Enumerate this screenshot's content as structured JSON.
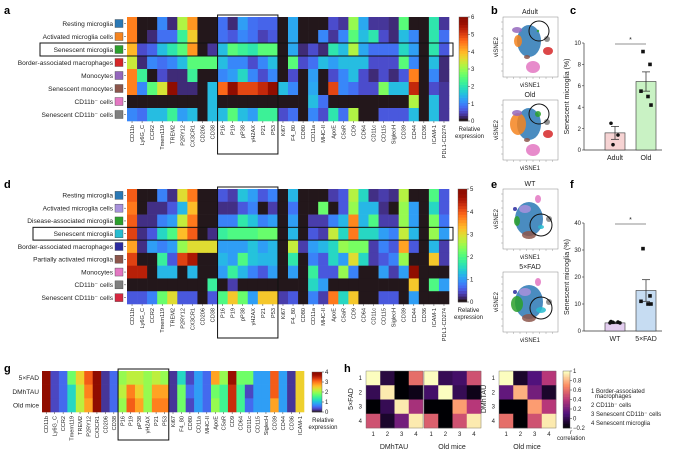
{
  "chart_data": [
    {
      "panel": "a",
      "type": "heatmap",
      "rows": [
        "Resting microglia",
        "Activated microglia cells",
        "Senescent microglia",
        "Border-associated macrophages",
        "Monocytes",
        "Senescent monocytes",
        "CD11b⁻ cells",
        "Senescent CD11b⁻ cells"
      ],
      "row_colors": [
        "#2a78b5",
        "#f5841f",
        "#2ca02c",
        "#d62728",
        "#9467bd",
        "#8c564b",
        "#e377c2",
        "#7f7f7f"
      ],
      "columns": [
        "CD11b",
        "Ly6G_C",
        "CCR2",
        "Tmem119",
        "TREM2",
        "P2RY12",
        "CX3CR1",
        "CD206",
        "CD38",
        "P16",
        "P19",
        "pP38",
        "γH2AX",
        "P21",
        "P53",
        "Ki67",
        "F4_80",
        "CD80",
        "CD11a",
        "MHC-II",
        "ApoE",
        "C5aR",
        "CD9",
        "CD64",
        "CD11c",
        "CD115",
        "SiglecH",
        "CD39",
        "CD44",
        "CD36",
        "ICAM-1",
        "PDL1-CD274"
      ],
      "values": [
        [
          4.5,
          0,
          0,
          1,
          0.2,
          3.2,
          4.3,
          0,
          0,
          0.8,
          0.2,
          1.2,
          0.8,
          0.7,
          0.7,
          0,
          1.3,
          0,
          0,
          0,
          0.5,
          0.3,
          3,
          1.3,
          0.3,
          0.3,
          0.2,
          2.5,
          0,
          0,
          2,
          0.3
        ],
        [
          4.5,
          0,
          0.2,
          0.8,
          0.8,
          2.2,
          3.8,
          0,
          0,
          0.8,
          0.6,
          1,
          0.8,
          0.4,
          0.6,
          0,
          1.3,
          0,
          0,
          1,
          0.3,
          1,
          2.5,
          1.5,
          2,
          0.5,
          0.2,
          1.5,
          1,
          0,
          2,
          0.8
        ],
        [
          4,
          0.5,
          0.7,
          1.5,
          2,
          2.5,
          4.3,
          0,
          0.3,
          1.5,
          2.5,
          2.2,
          2,
          2.5,
          2.5,
          0,
          1.3,
          0.2,
          0.5,
          0.2,
          2,
          1.5,
          3.2,
          1.3,
          0.8,
          0.8,
          0.8,
          1.8,
          1.2,
          0,
          2,
          0.6
        ],
        [
          3.4,
          0.2,
          1,
          0.8,
          1,
          1.5,
          2.5,
          2.5,
          2.5,
          1.5,
          1,
          1,
          0.5,
          1,
          1.5,
          0,
          2.5,
          0.5,
          0.8,
          1.5,
          1.2,
          1.5,
          1.5,
          1.5,
          0.5,
          0.5,
          0.5,
          2.5,
          1,
          0,
          1.5,
          0.2
        ],
        [
          4.5,
          2.2,
          0,
          0.5,
          0.2,
          0.2,
          2.2,
          0,
          0,
          1,
          1.2,
          1.8,
          1,
          0.5,
          1,
          0,
          0.5,
          0,
          1.2,
          0,
          0.5,
          1,
          1.5,
          0.5,
          0.2,
          0.5,
          0.2,
          0.6,
          4.5,
          0,
          1,
          0.2
        ],
        [
          4.5,
          1,
          2.5,
          3.5,
          6,
          0.2,
          0.2,
          0,
          1.5,
          4.7,
          6,
          5,
          5,
          5.3,
          6,
          1.5,
          1,
          0,
          1.3,
          0,
          5,
          1,
          0.8,
          0.5,
          0.5,
          2.8,
          1.5,
          1.5,
          5.3,
          0,
          0.5,
          0.3
        ],
        [
          0,
          0,
          0,
          0,
          0,
          0,
          0,
          0,
          1.5,
          0,
          0,
          0,
          0,
          0,
          0,
          0,
          0,
          0,
          1.5,
          0.8,
          0,
          0,
          0,
          0,
          0,
          0,
          0,
          0,
          3.2,
          0,
          1.5,
          0.3
        ],
        [
          1,
          0.8,
          1.5,
          1.5,
          2.2,
          1.2,
          1.5,
          0,
          1.5,
          1.5,
          2.5,
          1.5,
          1.2,
          2.2,
          2.2,
          0.5,
          0.8,
          0,
          1,
          0.5,
          2,
          0.8,
          3.2,
          0,
          0,
          0.6,
          0.6,
          0.6,
          1.5,
          0,
          1.5,
          0.3
        ]
      ],
      "highlight_row": "Senescent microglia",
      "highlight_columns": [
        "P16",
        "P19",
        "pP38",
        "γH2AX",
        "P21",
        "P53"
      ],
      "colorbar": {
        "label": "Relative expression",
        "range": [
          0,
          6
        ],
        "ticks": [
          "0",
          "1",
          "2",
          "3",
          "4",
          "5",
          "6"
        ]
      }
    },
    {
      "panel": "b",
      "type": "scatter",
      "plots": [
        {
          "title": "Adult"
        },
        {
          "title": "Old"
        }
      ],
      "xlabel": "viSNE1",
      "ylabel": "viSNE2"
    },
    {
      "panel": "c",
      "type": "bar",
      "categories": [
        "Adult",
        "Old"
      ],
      "values": [
        1.6,
        6.4
      ],
      "errors": [
        0.6,
        0.9
      ],
      "points": [
        [
          2.5,
          1.4,
          0.5
        ],
        [
          9.2,
          8.0,
          5.5,
          5.0,
          4.2
        ]
      ],
      "bar_colors": [
        "#f6d3d3",
        "#c9f2c4"
      ],
      "ylabel": "Senescent microglia (%)",
      "ylim": [
        0,
        10
      ],
      "yticks": [
        "0",
        "2",
        "4",
        "6",
        "8",
        "10"
      ],
      "significance": "*"
    },
    {
      "panel": "d",
      "type": "heatmap",
      "rows": [
        "Resting microglia",
        "Activated microglia cells",
        "Disease-associated microglia",
        "Senescent microglia",
        "Border-associated macrophages",
        "Partially activated microglia",
        "Monocytes",
        "CD11b⁻ cells",
        "Senescent CD11b⁻ cells"
      ],
      "row_colors": [
        "#2a78b5",
        "#a891dc",
        "#2ca02c",
        "#26bcd0",
        "#2b2ba0",
        "#8c564b",
        "#e377c2",
        "#7f7f7f",
        "#d62740"
      ],
      "columns": [
        "CD11b",
        "Ly6G_C",
        "CCR2",
        "Tmem119",
        "TREM2",
        "P2RY12",
        "CX3CR1",
        "CD206",
        "CD38",
        "P16",
        "P19",
        "pP38",
        "γH2AX",
        "P21",
        "P53",
        "Ki67",
        "F4_80",
        "CD80",
        "CD11a",
        "MHC-II",
        "ApoE",
        "C5aR",
        "CD9",
        "CD64",
        "CD11c",
        "CD115",
        "SiglecH",
        "CD39",
        "CD44",
        "CD36",
        "ICAM-1",
        "PDL1-CD274"
      ],
      "values": [
        [
          4,
          0,
          0,
          0.8,
          0.2,
          3,
          3.8,
          0,
          0,
          0.5,
          0.3,
          1.3,
          1,
          0.5,
          0.8,
          0,
          1.2,
          0,
          0,
          0,
          0.3,
          0.5,
          2.7,
          1.5,
          0.2,
          0.3,
          0.2,
          2.7,
          0,
          0,
          2,
          0.5
        ],
        [
          3.8,
          0,
          0.2,
          0.2,
          0.5,
          1.2,
          3.3,
          0,
          0,
          0.2,
          0.2,
          0.5,
          0.8,
          0,
          0.3,
          0,
          0.7,
          0,
          0,
          2.2,
          0,
          0.5,
          2.5,
          1.2,
          1.2,
          0.2,
          0,
          2.5,
          1,
          0,
          1.5,
          0.5
        ],
        [
          4,
          0.2,
          0.2,
          0.8,
          1,
          2.8,
          3.8,
          0,
          0,
          0.8,
          0.8,
          1.7,
          1.3,
          0.8,
          1,
          0,
          1,
          0,
          0.3,
          0.3,
          0.8,
          1.2,
          3.7,
          1.2,
          2,
          0.3,
          0.3,
          2.5,
          1,
          0,
          2.3,
          0.7
        ],
        [
          4.2,
          0.2,
          0.5,
          1.5,
          2,
          3.3,
          4,
          0,
          0.2,
          1.8,
          2,
          2,
          2,
          2.2,
          2.2,
          0,
          1.2,
          0,
          0.5,
          0.3,
          2.8,
          1.5,
          3.8,
          1.5,
          1.5,
          1,
          0.8,
          2.8,
          1.2,
          0,
          2.5,
          1
        ],
        [
          3.5,
          0.2,
          1,
          0.8,
          1,
          2.5,
          3,
          3,
          3,
          1,
          1,
          1,
          1.3,
          1,
          1.2,
          0,
          2.8,
          0.3,
          1,
          1.2,
          1.5,
          2.5,
          2.3,
          2.3,
          0.3,
          0.8,
          0.5,
          3.5,
          0.5,
          0,
          1.2,
          0.3
        ],
        [
          4.2,
          0,
          0,
          1.8,
          0.5,
          4.2,
          4.6,
          0,
          0,
          1.2,
          1,
          2,
          1.3,
          1.2,
          1.2,
          0,
          1.7,
          0,
          0.8,
          0.5,
          1.5,
          1,
          3,
          1.5,
          0.3,
          0.5,
          0.8,
          2.5,
          0,
          0,
          3.2,
          0.3
        ],
        [
          4.5,
          4.5,
          0,
          1.2,
          1.2,
          0,
          1.2,
          0,
          0,
          1,
          1.8,
          1.2,
          0.8,
          0.5,
          1,
          0,
          1,
          0,
          1.8,
          0.5,
          0.5,
          2.5,
          0.8,
          0,
          0,
          1,
          0.3,
          1,
          5,
          0,
          0,
          0
        ],
        [
          0,
          0,
          0,
          0,
          0,
          0,
          0,
          0,
          1.8,
          0,
          0.3,
          0,
          0,
          0,
          0,
          0,
          0,
          0,
          1.5,
          1,
          0,
          0,
          0,
          0,
          0,
          0,
          0,
          0,
          3.2,
          0,
          2,
          1
        ],
        [
          0.5,
          0.5,
          0.8,
          2.2,
          3,
          0.5,
          0.5,
          0,
          0.5,
          2,
          3.2,
          2.2,
          1,
          3.2,
          3.2,
          0.3,
          0.5,
          0,
          0.8,
          0.3,
          3.8,
          1.5,
          3.2,
          0,
          0,
          0.5,
          0.5,
          0,
          1,
          0,
          0,
          0
        ]
      ],
      "highlight_row": "Senescent microglia",
      "highlight_columns": [
        "P16",
        "P19",
        "pP38",
        "γH2AX",
        "P21",
        "P53"
      ],
      "colorbar": {
        "label": "Relative expression",
        "range": [
          0,
          5
        ],
        "ticks": [
          "0",
          "1",
          "2",
          "3",
          "4",
          "5"
        ]
      }
    },
    {
      "panel": "e",
      "type": "scatter",
      "plots": [
        {
          "title": "WT"
        },
        {
          "title": "5×FAD"
        }
      ],
      "xlabel": "viSNE1",
      "ylabel": "viSNE2"
    },
    {
      "panel": "f",
      "type": "bar",
      "categories": [
        "WT",
        "5×FAD"
      ],
      "values": [
        3.0,
        15.0
      ],
      "errors": [
        0.3,
        4.0
      ],
      "points": [
        [
          3.5,
          3.3,
          3.2,
          3.0,
          3.0
        ],
        [
          30.5,
          13,
          11,
          10,
          10
        ]
      ],
      "bar_colors": [
        "#e3cdef",
        "#c6dcf2"
      ],
      "ylabel": "Senescent microglia (%)",
      "ylim": [
        0,
        40
      ],
      "yticks": [
        "0",
        "10",
        "20",
        "30",
        "40"
      ],
      "significance": "*"
    },
    {
      "panel": "g",
      "type": "heatmap",
      "rows": [
        "5×FAD",
        "DMhTAU",
        "Old mice"
      ],
      "columns": [
        "CD11b",
        "Ly6G_C",
        "CCR2",
        "Tmem119",
        "TREM2",
        "P2RY12",
        "CX3CR1",
        "CD206",
        "CD38",
        "P16",
        "P19",
        "pP38",
        "γH2AX",
        "P21",
        "P53",
        "Ki67",
        "F4_80",
        "CD80",
        "CD11a",
        "MHC-II",
        "ApoE",
        "C5aR",
        "CD9",
        "CD64",
        "CD11c",
        "CD115",
        "SiglecH",
        "CD39",
        "CD44",
        "CD36",
        "ICAM-1"
      ],
      "values": [
        [
          4,
          0.3,
          0.5,
          1.8,
          2.5,
          3.2,
          4,
          0.2,
          0.5,
          2,
          2.2,
          2.2,
          2,
          2.2,
          2,
          0.2,
          1.2,
          0.3,
          0.8,
          0.5,
          2.8,
          2,
          3.8,
          1.8,
          1.8,
          0.8,
          0.8,
          3.2,
          0.8,
          0.2,
          2.5
        ],
        [
          4,
          0.3,
          0.5,
          1.2,
          2.2,
          3,
          4,
          0.2,
          0.5,
          2.2,
          3,
          2.5,
          2,
          2.8,
          2.8,
          0.2,
          1.8,
          0.5,
          0.8,
          0.5,
          1.8,
          1.5,
          3.5,
          1.5,
          0.3,
          0.8,
          0.8,
          3.2,
          0.8,
          0.2,
          2.5
        ],
        [
          4,
          0.3,
          0.5,
          1.2,
          2.2,
          2.8,
          4,
          0.2,
          0.5,
          2,
          3.2,
          2.8,
          2,
          3,
          3,
          0.2,
          1.8,
          0.3,
          0.8,
          0.5,
          2,
          1.5,
          3.5,
          1.5,
          0.5,
          0.8,
          0.8,
          2.8,
          0.8,
          0.2,
          2.5
        ]
      ],
      "highlight_columns": [
        "P16",
        "P19",
        "pP38",
        "γH2AX",
        "P21",
        "P53"
      ],
      "colorbar": {
        "label": "Relative expression",
        "range": [
          0,
          4
        ],
        "ticks": [
          "0",
          "1",
          "2",
          "3",
          "4"
        ]
      }
    },
    {
      "panel": "h",
      "type": "heatmap",
      "matrices": [
        {
          "ylabel": "5×FAD",
          "xlabel": "DMhTAU",
          "values": [
            [
              1,
              -0.05,
              -0.2,
              0.6
            ],
            [
              0,
              0.95,
              -0.2,
              -0.15
            ],
            [
              -0.2,
              0,
              0.95,
              0.35
            ],
            [
              0.5,
              -0.1,
              0.2,
              0.95
            ]
          ]
        },
        {
          "ylabel": "",
          "xlabel": "Old mice",
          "values": [
            [
              1,
              0,
              0.05,
              0.5
            ],
            [
              0.05,
              1,
              0,
              -0.15
            ],
            [
              -0.2,
              -0.2,
              0.75,
              0.4
            ],
            [
              0.55,
              -0.2,
              0.5,
              0.95
            ]
          ]
        },
        {
          "ylabel": "DMhTAU",
          "xlabel": "Old mice",
          "values": [
            [
              1,
              -0.1,
              0.1,
              0.4
            ],
            [
              0.15,
              0.8,
              0.2,
              -0.1
            ],
            [
              -0.2,
              -0.2,
              0.75,
              0.4
            ],
            [
              0.6,
              -0.2,
              0.5,
              0.95
            ]
          ]
        }
      ],
      "tick_labels": [
        "1",
        "2",
        "3",
        "4"
      ],
      "colorbar": {
        "label": "correlation",
        "symbol": "r",
        "range": [
          -0.2,
          1
        ],
        "ticks": [
          "1",
          "0.8",
          "0.6",
          "0.4",
          "0.2",
          "0",
          "−0.2"
        ]
      },
      "legend": [
        "1 Border-associated",
        "macrophages",
        "2 CD11b⁻ cells",
        "3 Senescent CD11b⁻ cells",
        "4 Senescent microglia"
      ]
    }
  ],
  "panel_labels": [
    "a",
    "b",
    "c",
    "d",
    "e",
    "f",
    "g",
    "h"
  ]
}
